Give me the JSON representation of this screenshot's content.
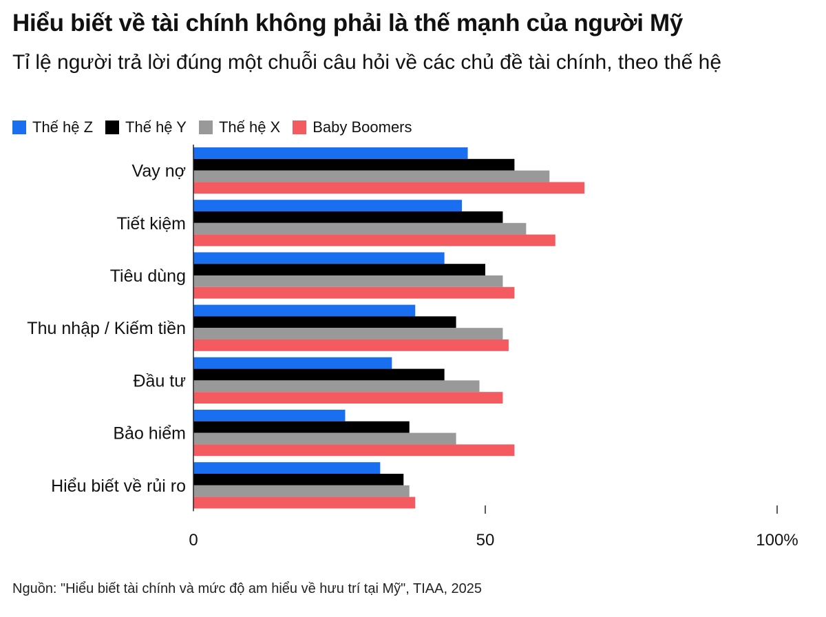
{
  "title": "Hiểu biết về tài chính không phải là thế mạnh của người Mỹ",
  "subtitle": "Tỉ lệ người trả lời đúng một chuỗi câu hỏi về các chủ đề tài chính, theo thế hệ",
  "source": "Nguồn: \"Hiểu biết tài chính và mức độ am hiểu về hưu trí tại Mỹ\", TIAA, 2025",
  "chart_data": {
    "type": "bar",
    "orientation": "horizontal",
    "title": "Hiểu biết về tài chính không phải là thế mạnh của người Mỹ",
    "subtitle": "Tỉ lệ người trả lời đúng một chuỗi câu hỏi về các chủ đề tài chính, theo thế hệ",
    "categories": [
      "Vay nợ",
      "Tiết kiệm",
      "Tiêu dùng",
      "Thu nhập / Kiếm tiền",
      "Đầu tư",
      "Bảo hiểm",
      "Hiểu biết về rủi ro"
    ],
    "series": [
      {
        "name": "Thế hệ Z",
        "color": "#1a6ff0",
        "values": [
          47,
          46,
          43,
          38,
          34,
          26,
          32
        ]
      },
      {
        "name": "Thế hệ Y",
        "color": "#000000",
        "values": [
          55,
          53,
          50,
          45,
          43,
          37,
          36
        ]
      },
      {
        "name": "Thế hệ X",
        "color": "#999999",
        "values": [
          61,
          57,
          53,
          53,
          49,
          45,
          37
        ]
      },
      {
        "name": "Baby Boomers",
        "color": "#f45b60",
        "values": [
          67,
          62,
          55,
          54,
          53,
          55,
          38
        ]
      }
    ],
    "xlim": [
      0,
      100
    ],
    "xticks": [
      0,
      50,
      100
    ],
    "xtick_labels": [
      "0",
      "50",
      "100%"
    ],
    "legend_position": "top-left",
    "grid": false
  }
}
